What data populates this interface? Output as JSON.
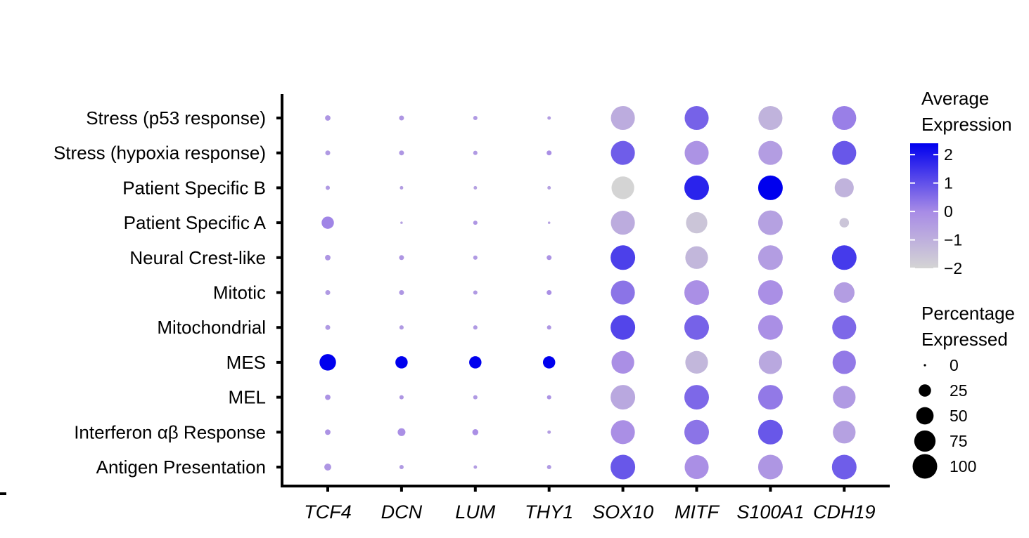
{
  "chart_data": {
    "type": "dot",
    "rows": [
      "Stress (p53 response)",
      "Stress (hypoxia response)",
      "Patient Specific B",
      "Patient Specific A",
      "Neural Crest-like",
      "Mitotic",
      "Mitochondrial",
      "MES",
      "MEL",
      "Interferon αβ Response",
      "Antigen Presentation"
    ],
    "columns": [
      "TCF4",
      "DCN",
      "LUM",
      "THY1",
      "SOX10",
      "MITF",
      "S100A1",
      "CDH19"
    ],
    "average_expression": [
      [
        -0.3,
        -0.3,
        -0.4,
        -0.5,
        -0.9,
        0.7,
        -1.1,
        0.2
      ],
      [
        -0.4,
        -0.3,
        -0.4,
        -0.1,
        0.8,
        -0.2,
        -0.5,
        0.9
      ],
      [
        -0.4,
        -0.5,
        -0.6,
        -0.6,
        -2.0,
        1.8,
        2.4,
        -1.1
      ],
      [
        0.1,
        -0.6,
        -0.3,
        -0.6,
        -0.9,
        -1.6,
        -0.6,
        -1.6
      ],
      [
        -0.3,
        -0.3,
        -0.4,
        -0.2,
        1.3,
        -1.2,
        -0.5,
        1.4
      ],
      [
        -0.4,
        -0.3,
        -0.4,
        -0.1,
        0.4,
        -0.1,
        -0.1,
        -0.5
      ],
      [
        -0.4,
        -0.4,
        -0.4,
        -0.3,
        1.2,
        0.7,
        -0.1,
        0.6
      ],
      [
        2.4,
        2.4,
        2.4,
        2.4,
        -0.1,
        -1.2,
        -0.8,
        0.3
      ],
      [
        -0.2,
        -0.3,
        -0.4,
        -0.2,
        -0.8,
        0.6,
        0.3,
        -0.4
      ],
      [
        -0.2,
        -0.1,
        -0.1,
        -0.5,
        -0.1,
        0.4,
        0.9,
        -0.6
      ],
      [
        -0.3,
        -0.4,
        -0.5,
        -0.4,
        0.9,
        -0.1,
        -0.3,
        0.8
      ]
    ],
    "percent_expressed": [
      [
        5,
        4,
        3,
        2,
        95,
        95,
        95,
        95
      ],
      [
        4,
        4,
        3,
        4,
        95,
        95,
        95,
        95
      ],
      [
        3,
        2,
        2,
        2,
        85,
        100,
        100,
        60
      ],
      [
        25,
        1,
        3,
        1,
        95,
        75,
        100,
        15
      ],
      [
        5,
        4,
        3,
        4,
        100,
        85,
        100,
        100
      ],
      [
        4,
        4,
        3,
        4,
        95,
        100,
        100,
        70
      ],
      [
        4,
        3,
        3,
        3,
        100,
        100,
        100,
        95
      ],
      [
        45,
        25,
        25,
        25,
        85,
        85,
        90,
        90
      ],
      [
        5,
        3,
        3,
        3,
        100,
        100,
        100,
        85
      ],
      [
        5,
        10,
        6,
        2,
        95,
        100,
        100,
        85
      ],
      [
        8,
        3,
        2,
        3,
        100,
        95,
        100,
        100
      ]
    ],
    "color_scale": {
      "low": "#d4d4d4",
      "high": "#0000ee",
      "min": -2,
      "max": 2.4
    },
    "legend_color": {
      "title_lines": [
        "Average",
        "Expression"
      ],
      "ticks": [
        2,
        1,
        0,
        -1,
        -2
      ],
      "tick_labels": [
        "2",
        "1",
        "0",
        "−1",
        "−2"
      ]
    },
    "legend_size": {
      "title_lines": [
        "Percentage",
        "Expressed"
      ],
      "values": [
        0,
        25,
        50,
        75,
        100
      ],
      "labels": [
        "0",
        "25",
        "50",
        "75",
        "100"
      ]
    }
  }
}
